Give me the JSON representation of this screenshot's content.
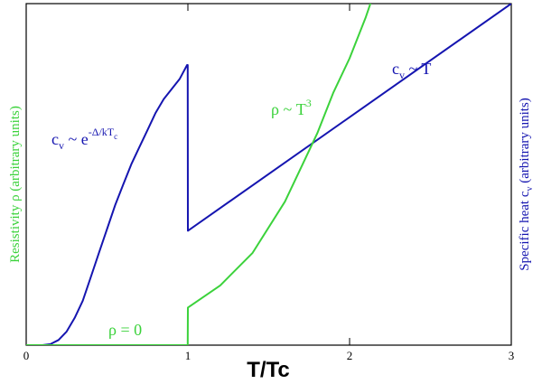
{
  "chart_data": {
    "type": "line",
    "title": "",
    "xlabel": "T/Tc",
    "ylabel_left": "Resistivity ρ (arbitrary units)",
    "ylabel_right_main": "Specific heat c",
    "ylabel_right_sub": "v",
    "ylabel_right_tail": " (arbitrary units)",
    "xlim": [
      0,
      3
    ],
    "ylim": [
      0,
      1
    ],
    "xticks": [
      0,
      1,
      2,
      3
    ],
    "grid": false,
    "colors": {
      "specific_heat": "#1515b0",
      "resistivity": "#3bd23b",
      "left_label": "#3bd23b",
      "right_label": "#1515b0"
    },
    "series": [
      {
        "key": "specific_heat",
        "x": [
          0,
          0.1,
          0.15,
          0.2,
          0.25,
          0.3,
          0.35,
          0.4,
          0.45,
          0.5,
          0.55,
          0.6,
          0.65,
          0.7,
          0.75,
          0.8,
          0.85,
          0.9,
          0.95,
          0.995,
          0.999,
          1.0,
          3.0
        ],
        "y": [
          0,
          0,
          0.003,
          0.015,
          0.04,
          0.08,
          0.13,
          0.2,
          0.27,
          0.34,
          0.41,
          0.47,
          0.53,
          0.58,
          0.63,
          0.68,
          0.72,
          0.75,
          0.78,
          0.82,
          0.82,
          0.335,
          1.0
        ]
      },
      {
        "key": "resistivity",
        "x": [
          0,
          0.999,
          1.0,
          1.2,
          1.4,
          1.6,
          1.7,
          1.8,
          1.9,
          2.0,
          2.1,
          2.15
        ],
        "y": [
          0,
          0,
          0.11,
          0.175,
          0.27,
          0.42,
          0.52,
          0.62,
          0.74,
          0.84,
          0.96,
          1.03
        ]
      }
    ],
    "annotations": [
      {
        "key": "cv_exp",
        "base": "c",
        "sub": "v",
        "mid": " ~ e",
        "sup": "-Δ/kT",
        "supsub": "c",
        "color": "#1515b0"
      },
      {
        "key": "cv_lin",
        "base": "c",
        "sub": "v",
        "mid": " ~ T",
        "color": "#1515b0"
      },
      {
        "key": "rho_cube",
        "base": "ρ ~ T",
        "sup": "3",
        "color": "#3bd23b"
      },
      {
        "key": "rho_zero",
        "base": "ρ = 0",
        "color": "#3bd23b"
      }
    ]
  }
}
